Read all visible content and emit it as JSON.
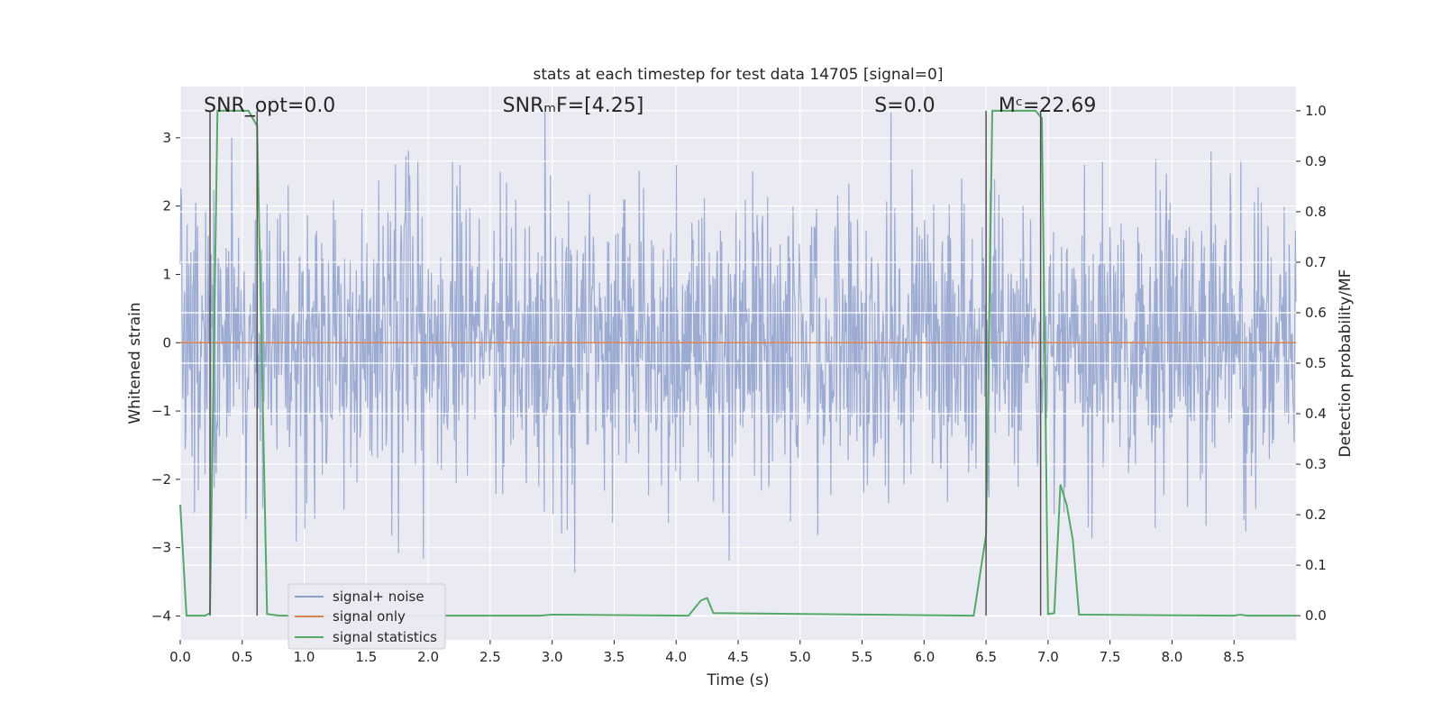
{
  "chart_data": {
    "type": "line",
    "title": "stats at each timestep for test data 14705 [signal=0]",
    "xlabel": "Time (s)",
    "ylabel": "Whitened strain",
    "y2label": "Detection probability/MF",
    "xlim": [
      0,
      9.0
    ],
    "ylim": [
      -4.35,
      3.75
    ],
    "y2lim": [
      -0.048,
      1.048
    ],
    "x_ticks": [
      0.0,
      0.5,
      1.0,
      1.5,
      2.0,
      2.5,
      3.0,
      3.5,
      4.0,
      4.5,
      5.0,
      5.5,
      6.0,
      6.5,
      7.0,
      7.5,
      8.0,
      8.5
    ],
    "x_tick_labels": [
      "0.0",
      "0.5",
      "1.0",
      "1.5",
      "2.0",
      "2.5",
      "3.0",
      "3.5",
      "4.0",
      "4.5",
      "5.0",
      "5.5",
      "6.0",
      "6.5",
      "7.0",
      "7.5",
      "8.0",
      "8.5"
    ],
    "y_ticks": [
      3,
      2,
      1,
      0,
      -1,
      -2,
      -3,
      -4
    ],
    "y_tick_labels": [
      "3",
      "2",
      "1",
      "0",
      "−1",
      "−2",
      "−3",
      "−4"
    ],
    "y2_ticks": [
      1.0,
      0.9,
      0.8,
      0.7,
      0.6,
      0.5,
      0.4,
      0.3,
      0.2,
      0.1,
      0.0
    ],
    "y2_tick_labels": [
      "1.0",
      "0.9",
      "0.8",
      "0.7",
      "0.6",
      "0.5",
      "0.4",
      "0.3",
      "0.2",
      "0.1",
      "0.0"
    ],
    "grid": true,
    "legend_position": "lower-left",
    "annotations": [
      {
        "text": "SNR_opt=0.0",
        "x": 0.19
      },
      {
        "text": "SNRₘF=[4.25]",
        "x": 2.6
      },
      {
        "text": "S=0.0",
        "x": 5.6
      },
      {
        "text": "Mᶜ=22.69",
        "x": 6.6
      }
    ],
    "vertical_lines": [
      0.24,
      0.62,
      6.5,
      6.94
    ],
    "series": [
      {
        "name": "signal+ noise",
        "color": "#8da0cb",
        "axis": "left",
        "noise": {
          "sd": 0.85,
          "n_samples": 1800
        }
      },
      {
        "name": "signal only",
        "color": "#dd8452",
        "axis": "left",
        "x": [
          0.0,
          9.0
        ],
        "y": [
          0.0,
          0.0
        ]
      },
      {
        "name": "signal statistics",
        "color": "#55a868",
        "axis": "right",
        "x": [
          0.0,
          0.05,
          0.1,
          0.2,
          0.24,
          0.3,
          0.35,
          0.55,
          0.62,
          0.7,
          0.8,
          2.9,
          3.0,
          4.1,
          4.2,
          4.25,
          4.3,
          6.4,
          6.5,
          6.55,
          6.6,
          6.9,
          6.95,
          7.0,
          7.05,
          7.1,
          7.15,
          7.2,
          7.25,
          8.5,
          8.55,
          8.6,
          9.0
        ],
        "y": [
          0.22,
          0.0,
          0.0,
          0.0,
          0.005,
          1.0,
          1.0,
          1.0,
          0.97,
          0.003,
          0.0,
          0.0,
          0.002,
          0.0,
          0.03,
          0.035,
          0.005,
          0.0,
          0.16,
          1.0,
          1.0,
          1.0,
          0.985,
          0.003,
          0.005,
          0.26,
          0.22,
          0.15,
          0.002,
          0.0,
          0.002,
          0.0,
          0.0
        ]
      }
    ]
  }
}
